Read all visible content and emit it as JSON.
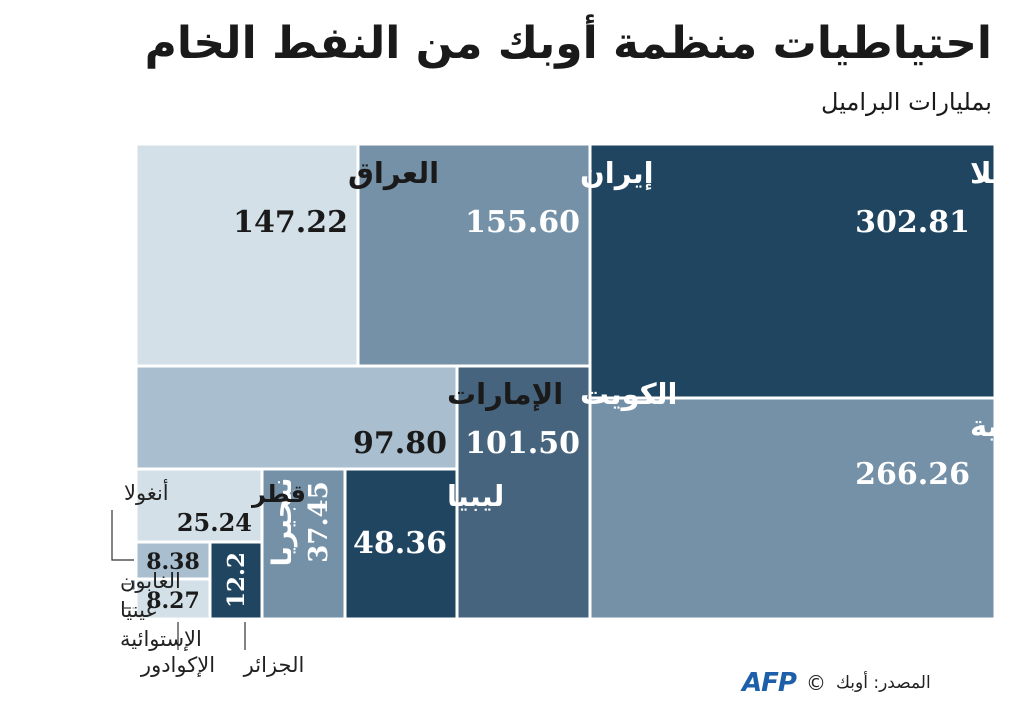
{
  "title": "احتياطيات منظمة أوبك من النفط الخام",
  "subtitle": "بمليارات البراميل",
  "source": "المصدر: أوبك",
  "logo": "AFP",
  "colors": {
    "darkest": "#1f4560",
    "dark": "#46647e",
    "mid": "#7491a8",
    "light": "#a9bfcf",
    "lightest": "#d3e0e7",
    "text_light": "#ffffff",
    "text_dark": "#1a1a1a"
  },
  "chart_data": {
    "type": "treemap",
    "unit": "بمليارات البراميل",
    "items": [
      {
        "name": "فنزويلا",
        "value": "302.81",
        "color": "darkest"
      },
      {
        "name": "السعودية",
        "value": "266.26",
        "color": "mid"
      },
      {
        "name": "إيران",
        "value": "155.60",
        "color": "mid"
      },
      {
        "name": "العراق",
        "value": "147.22",
        "color": "lightest"
      },
      {
        "name": "الكويت",
        "value": "101.50",
        "color": "dark"
      },
      {
        "name": "الإمارات",
        "value": "97.80",
        "color": "light"
      },
      {
        "name": "ليبيا",
        "value": "48.36",
        "color": "darkest"
      },
      {
        "name": "نيجيريا",
        "value": "37.45",
        "color": "mid"
      },
      {
        "name": "قطر",
        "value": "25.24",
        "color": "lightest"
      },
      {
        "name": "الجزائر",
        "value": "12.2",
        "color": "darkest"
      },
      {
        "name": "أنغولا",
        "value": "8.38",
        "color": "light"
      },
      {
        "name": "الإكوادور",
        "value": "8.27",
        "color": "lightest"
      },
      {
        "name": "الغابون",
        "value": "",
        "color": "dark"
      },
      {
        "name": "غينيا الإستوائية",
        "value": "",
        "color": "mid"
      }
    ]
  }
}
